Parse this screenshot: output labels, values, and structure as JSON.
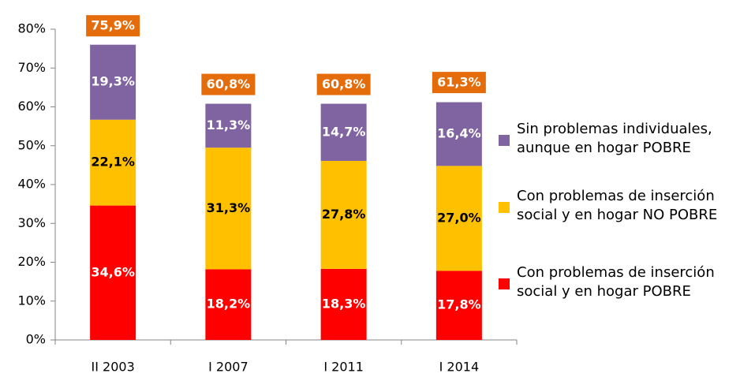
{
  "chart_data": {
    "type": "stacked_bar",
    "categories": [
      "II 2003",
      "I 2007",
      "I 2011",
      "I 2014"
    ],
    "series": [
      {
        "name": "Con problemas de inserción social y en hogar POBRE",
        "color": "#FF0000",
        "values": [
          34.6,
          18.2,
          18.3,
          17.8
        ],
        "value_labels": [
          "34,6%",
          "18,2%",
          "18,3%",
          "17,8%"
        ]
      },
      {
        "name": "Con problemas de inserción social y en hogar NO POBRE",
        "color": "#FFC000",
        "values": [
          22.1,
          31.3,
          27.8,
          27.0
        ],
        "value_labels": [
          "22,1%",
          "31,3%",
          "27,8%",
          "27,0%"
        ]
      },
      {
        "name": "Sin problemas individuales, aunque en hogar POBRE",
        "color": "#8064A2",
        "values": [
          19.3,
          11.3,
          14.7,
          16.4
        ],
        "value_labels": [
          "19,3%",
          "11,3%",
          "14,7%",
          "16,4%"
        ]
      }
    ],
    "totals": [
      75.9,
      60.8,
      60.8,
      61.3
    ],
    "total_labels": [
      "75,9%",
      "60,8%",
      "60,8%",
      "61,3%"
    ],
    "total_color": "#E46C0A",
    "ylim": [
      0,
      80
    ],
    "yticks": [
      {
        "value": 0,
        "label": "0%"
      },
      {
        "value": 10,
        "label": "10%"
      },
      {
        "value": 20,
        "label": "20%"
      },
      {
        "value": 30,
        "label": "30%"
      },
      {
        "value": 40,
        "label": "40%"
      },
      {
        "value": 50,
        "label": "50%"
      },
      {
        "value": 60,
        "label": "60%"
      },
      {
        "value": 70,
        "label": "70%"
      },
      {
        "value": 80,
        "label": "80%"
      }
    ],
    "legend": "right"
  }
}
